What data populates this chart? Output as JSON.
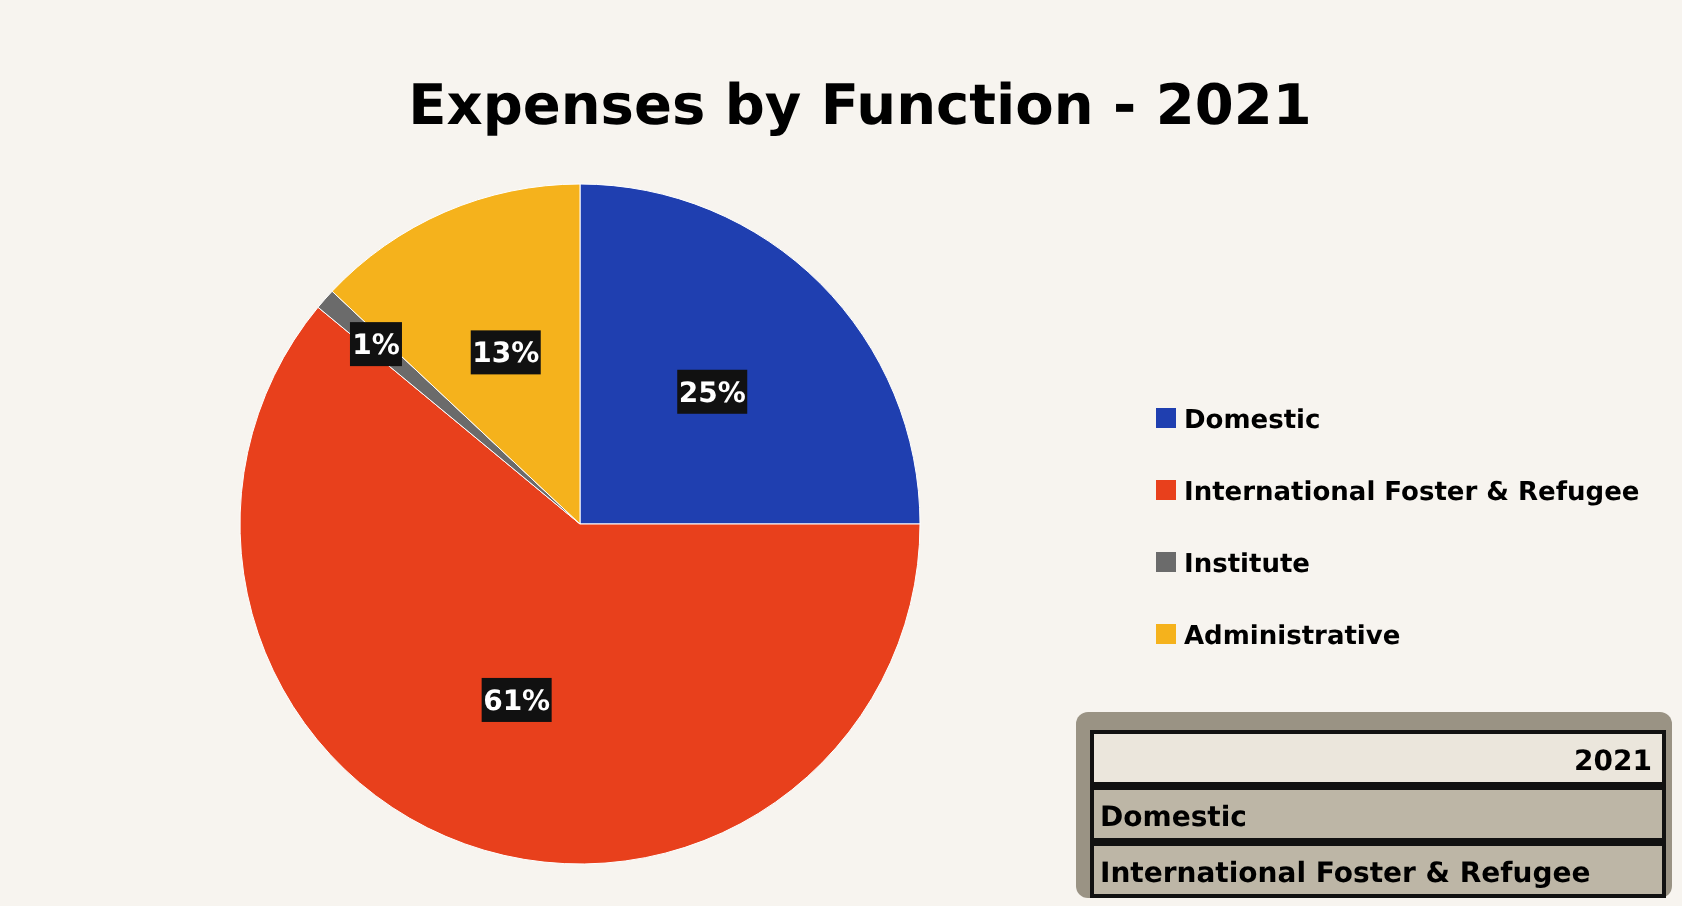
{
  "chart_data": {
    "type": "pie",
    "title": "Expenses by Function - 2021",
    "categories": [
      "Domestic",
      "International Foster & Refugee",
      "Institute",
      "Administrative"
    ],
    "values": [
      25,
      61,
      1,
      13
    ],
    "colors": [
      "#1f3fb0",
      "#e8401c",
      "#6b6b6b",
      "#f5b21c"
    ],
    "value_labels": [
      "25%",
      "61%",
      "1%",
      "13%"
    ],
    "legend": "right",
    "annotations": [
      "2021",
      "Domestic",
      "International Foster & Refugee"
    ]
  }
}
